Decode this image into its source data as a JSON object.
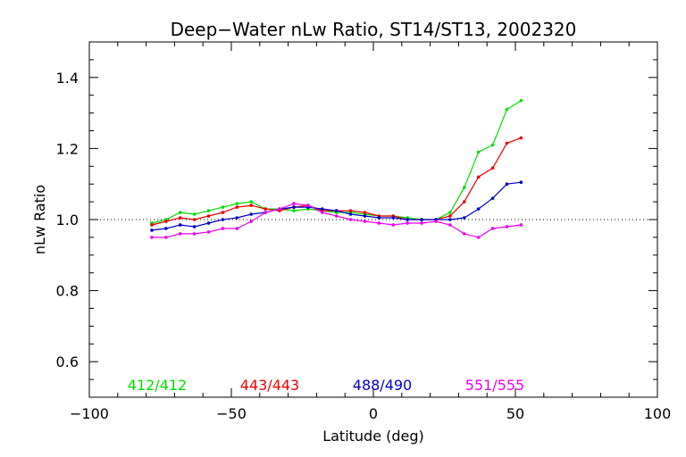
{
  "chart_data": {
    "type": "line",
    "title": "Deep−Water nLw Ratio, ST14/ST13, 2002320",
    "xlabel": "Latitude (deg)",
    "ylabel": "nLw Ratio",
    "xlim": [
      -100,
      100
    ],
    "ylim": [
      0.5,
      1.5
    ],
    "x_ticks": [
      -100,
      -50,
      0,
      50,
      100
    ],
    "x_tick_labels": [
      "−100",
      "−50",
      "0",
      "50",
      "100"
    ],
    "y_ticks": [
      0.6,
      0.8,
      1.0,
      1.2,
      1.4
    ],
    "y_tick_labels": [
      "0.6",
      "0.8",
      "1.0",
      "1.2",
      "1.4"
    ],
    "reference_line": 1.0,
    "x": [
      -78,
      -73,
      -68,
      -63,
      -58,
      -53,
      -48,
      -43,
      -38,
      -33,
      -28,
      -23,
      -18,
      -13,
      -8,
      -3,
      2,
      7,
      12,
      17,
      22,
      27,
      32,
      37,
      42,
      47,
      52
    ],
    "series": [
      {
        "name": "412/412",
        "color": "#00dd00",
        "values": [
          0.99,
          1.0,
          1.02,
          1.015,
          1.025,
          1.035,
          1.045,
          1.05,
          1.03,
          1.03,
          1.025,
          1.03,
          1.025,
          1.02,
          1.02,
          1.015,
          1.01,
          1.01,
          1.005,
          1.0,
          1.0,
          1.02,
          1.09,
          1.19,
          1.21,
          1.31,
          1.335
        ]
      },
      {
        "name": "443/443",
        "color": "#ee0000",
        "values": [
          0.985,
          0.995,
          1.005,
          1.0,
          1.01,
          1.02,
          1.035,
          1.04,
          1.03,
          1.025,
          1.035,
          1.04,
          1.025,
          1.025,
          1.025,
          1.02,
          1.01,
          1.01,
          1.0,
          1.0,
          1.0,
          1.01,
          1.05,
          1.12,
          1.145,
          1.215,
          1.23
        ]
      },
      {
        "name": "488/490",
        "color": "#0000cc",
        "values": [
          0.97,
          0.975,
          0.985,
          0.98,
          0.99,
          1.0,
          1.005,
          1.015,
          1.02,
          1.03,
          1.035,
          1.035,
          1.03,
          1.025,
          1.015,
          1.01,
          1.005,
          1.005,
          1.0,
          1.0,
          1.0,
          1.0,
          1.005,
          1.03,
          1.06,
          1.1,
          1.105
        ]
      },
      {
        "name": "551/555",
        "color": "#ee00ee",
        "values": [
          0.95,
          0.95,
          0.96,
          0.96,
          0.965,
          0.975,
          0.975,
          0.995,
          1.02,
          1.03,
          1.045,
          1.04,
          1.02,
          1.01,
          1.0,
          0.995,
          0.99,
          0.985,
          0.99,
          0.99,
          0.995,
          0.985,
          0.96,
          0.95,
          0.975,
          0.98,
          0.985
        ]
      }
    ]
  }
}
